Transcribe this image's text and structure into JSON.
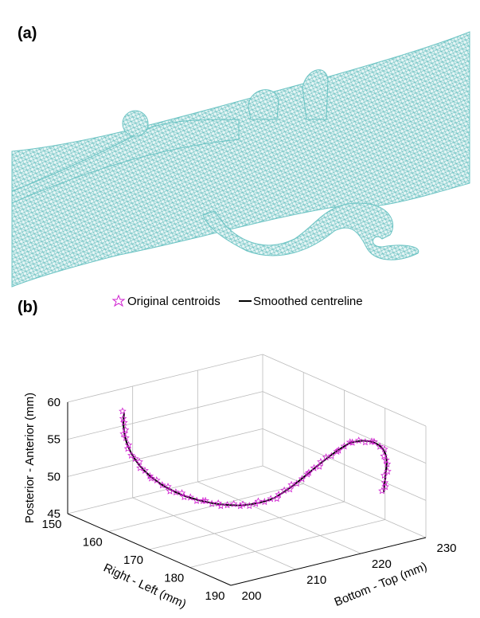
{
  "panel_a": {
    "label": "(a)"
  },
  "panel_b": {
    "label": "(b)",
    "legend": [
      "Original centroids",
      "Smoothed centreline"
    ],
    "z_axis": {
      "label": "Posterior - Anterior (mm)",
      "ticks": [
        45,
        50,
        55,
        60
      ]
    },
    "x_axis": {
      "label": "Right - Left (mm)",
      "ticks": [
        150,
        160,
        170,
        180,
        190
      ]
    },
    "y_axis": {
      "label": "Bottom - Top (mm)",
      "ticks": [
        200,
        210,
        220,
        230
      ]
    }
  }
}
